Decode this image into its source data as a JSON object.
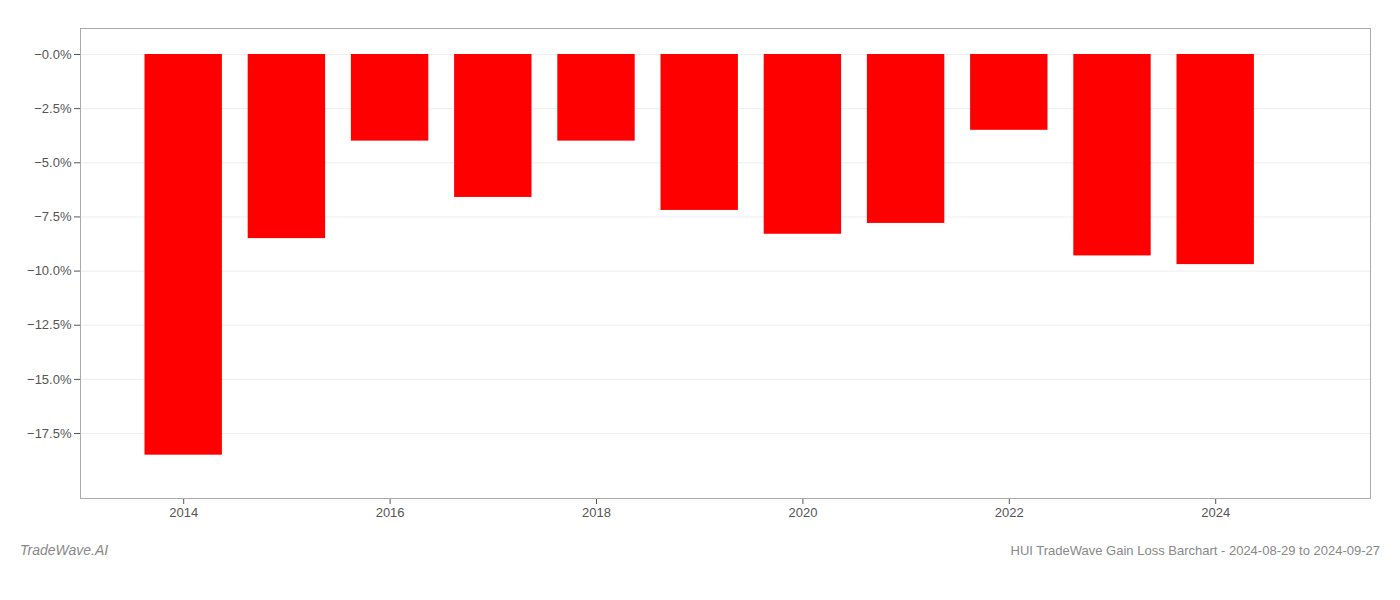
{
  "chart_data": {
    "type": "bar",
    "title": "HUI TradeWave Gain Loss Barchart - 2024-08-29 to 2024-09-27",
    "annotations": [
      "TradeWave.AI"
    ],
    "x": [
      2014,
      2015,
      2016,
      2017,
      2018,
      2019,
      2020,
      2021,
      2022,
      2023,
      2024
    ],
    "values": [
      -18.5,
      -8.5,
      -4.0,
      -6.6,
      -4.0,
      -7.2,
      -8.3,
      -7.8,
      -3.5,
      -9.3,
      -9.7
    ],
    "color": "#ff0000",
    "xlim": [
      2013.0,
      2025.5
    ],
    "xticks": [
      2014,
      2016,
      2018,
      2020,
      2022,
      2024
    ],
    "ylim": [
      -20.5,
      1.2
    ],
    "yticks": [
      {
        "value": 0.0,
        "label": "−0.0%"
      },
      {
        "value": -2.5,
        "label": "−2.5%"
      },
      {
        "value": -5.0,
        "label": "−5.0%"
      },
      {
        "value": -7.5,
        "label": "−7.5%"
      },
      {
        "value": -10.0,
        "label": "−10.0%"
      },
      {
        "value": -12.5,
        "label": "−12.5%"
      },
      {
        "value": -15.0,
        "label": "−15.0%"
      },
      {
        "value": -17.5,
        "label": "−17.5%"
      }
    ],
    "grid": true
  }
}
